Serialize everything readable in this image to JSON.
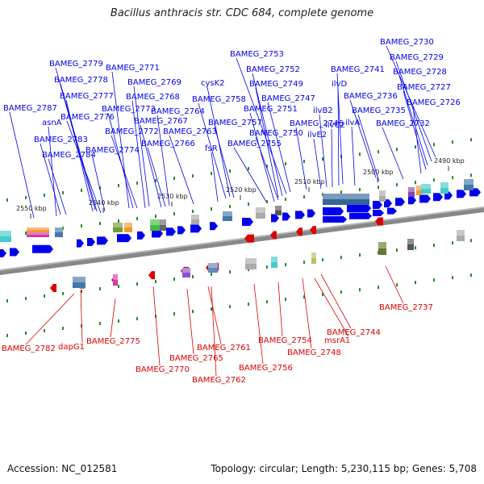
{
  "title": "Bacillus anthracis str. CDC 684, complete genome",
  "footer": {
    "accession": "Accession: NC_012581",
    "summary": "Topology: circular; Length: 5,230,115 bp; Genes: 5,708"
  },
  "colors": {
    "forward": "#0000ee",
    "reverse": "#dd0000",
    "backbone": "#888888",
    "tick_green": "#228b22"
  },
  "ticks": [
    "2550 kbp",
    "2540 kbp",
    "2530 kbp",
    "2520 kbp",
    "2510 kbp",
    "2500 kbp",
    "2490 kbp"
  ],
  "forward_labels": [
    "BAMEG_2730",
    "BAMEG_2729",
    "BAMEG_2728",
    "BAMEG_2727",
    "BAMEG_2726",
    "BAMEG_2753",
    "BAMEG_2752",
    "BAMEG_2749",
    "BAMEG_2747",
    "BAMEG_2751",
    "BAMEG_2746",
    "BAMEG_2750",
    "BAMEG_2755",
    "BAMEG_2741",
    "ilvD",
    "BAMEG_2736",
    "ilvB2",
    "ilvC2",
    "ilvA",
    "ilvE2",
    "BAMEG_2735",
    "BAMEG_2732",
    "BAMEG_2779",
    "BAMEG_2778",
    "BAMEG_2771",
    "BAMEG_2769",
    "BAMEG_2777",
    "BAMEG_2768",
    "BAMEG_2787",
    "BAMEG_2773",
    "BAMEG_2776",
    "BAMEG_2764",
    "asnA",
    "BAMEG_2767",
    "BAMEG_2772",
    "BAMEG_2763",
    "BAMEG_2783",
    "BAMEG_2774",
    "BAMEG_2766",
    "BAMEG_2784",
    "cysK2",
    "BAMEG_2758",
    "BAMEG_2757",
    "fsR"
  ],
  "reverse_labels": [
    "BAMEG_2782",
    "dapG1",
    "BAMEG_2775",
    "BAMEG_2770",
    "BAMEG_2765",
    "BAMEG_2761",
    "BAMEG_2762",
    "BAMEG_2756",
    "BAMEG_2754",
    "BAMEG_2748",
    "msrA1",
    "BAMEG_2744",
    "BAMEG_2737"
  ]
}
